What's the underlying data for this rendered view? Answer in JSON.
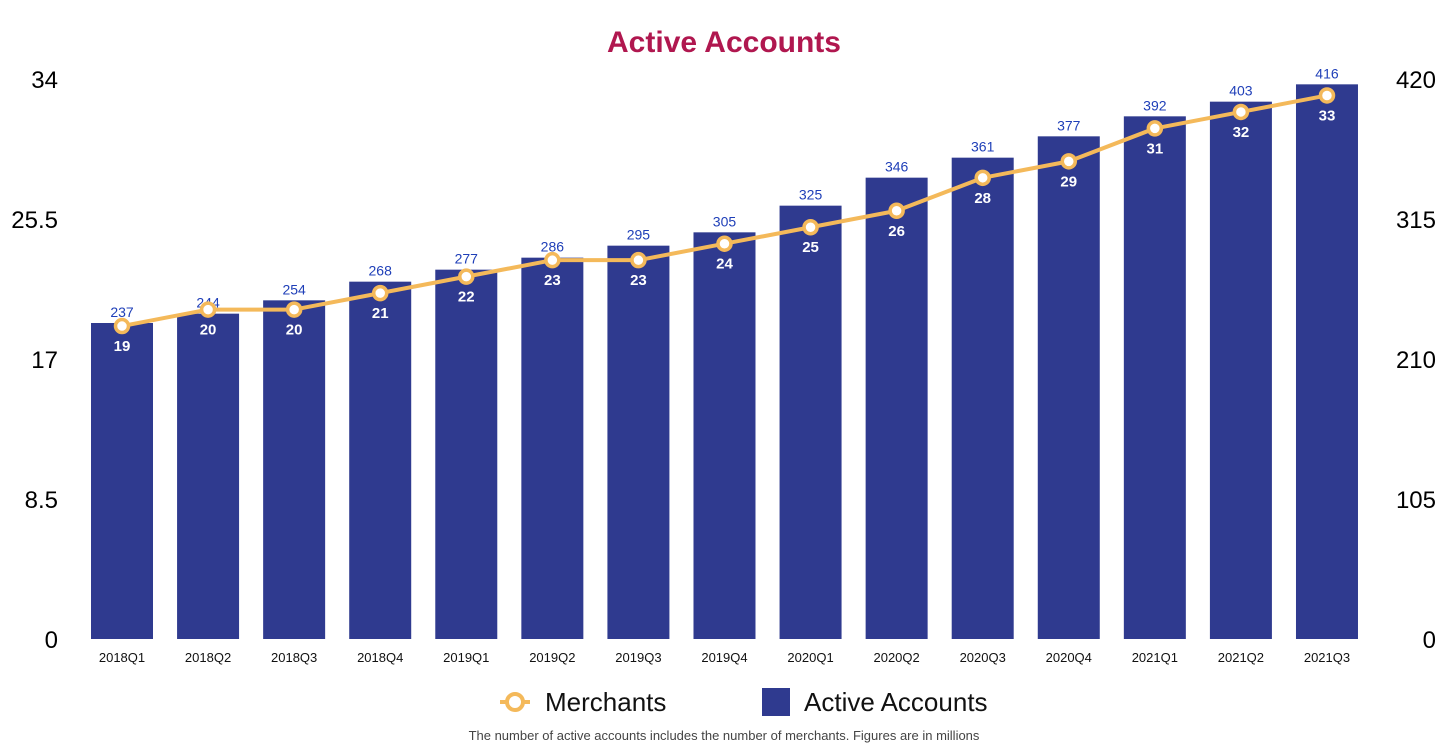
{
  "chart_data": {
    "type": "bar",
    "title": "Active Accounts",
    "categories": [
      "2018Q1",
      "2018Q2",
      "2018Q3",
      "2018Q4",
      "2019Q1",
      "2019Q2",
      "2019Q3",
      "2019Q4",
      "2020Q1",
      "2020Q2",
      "2020Q3",
      "2020Q4",
      "2021Q1",
      "2021Q2",
      "2021Q3"
    ],
    "series": [
      {
        "name": "Active Accounts",
        "type": "bar",
        "axis": "right",
        "color": "#2f3a8f",
        "label_color": "#1f3fb8",
        "values": [
          237,
          244,
          254,
          268,
          277,
          286,
          295,
          305,
          325,
          346,
          361,
          377,
          392,
          403,
          416
        ]
      },
      {
        "name": "Merchants",
        "type": "line",
        "axis": "left",
        "color": "#f4b95a",
        "values": [
          19,
          20,
          20,
          21,
          22,
          23,
          23,
          24,
          25,
          26,
          28,
          29,
          31,
          32,
          33
        ]
      }
    ],
    "y_left": {
      "ticks": [
        "0",
        "8.5",
        "17",
        "25.5",
        "34"
      ],
      "ylim": [
        0,
        34
      ]
    },
    "y_right": {
      "ticks": [
        "0",
        "105",
        "210",
        "315",
        "420"
      ],
      "ylim": [
        0,
        420
      ]
    },
    "legend_position": "bottom-center",
    "grid": false,
    "footnote": "The number of active accounts includes the number of merchants. Figures are in millions",
    "title_color": "#b0174f"
  }
}
